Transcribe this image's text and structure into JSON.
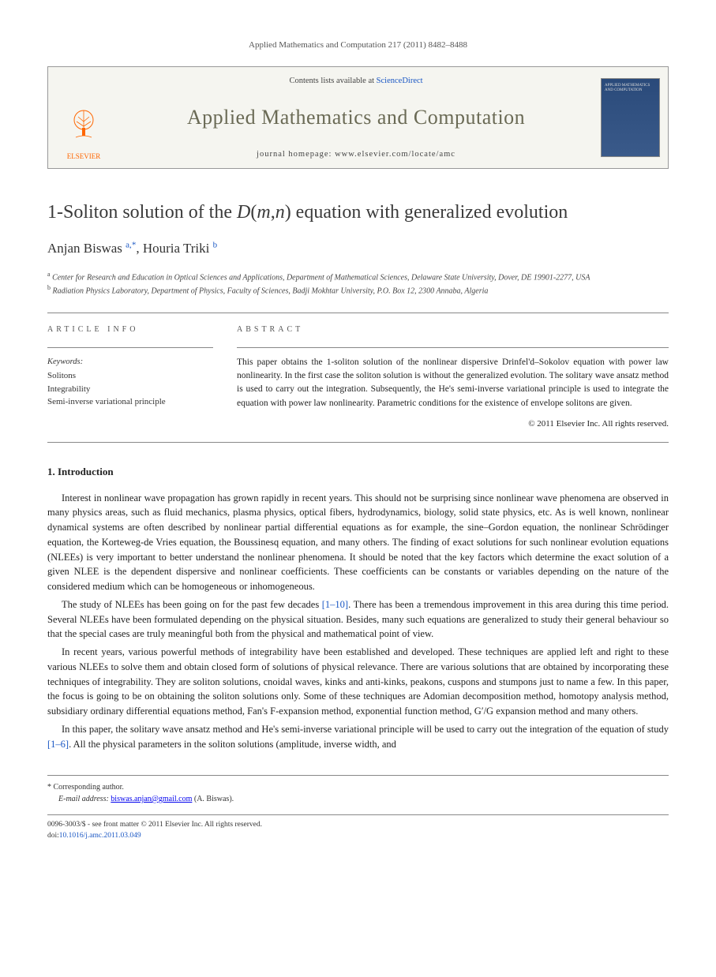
{
  "journal_ref": "Applied Mathematics and Computation 217 (2011) 8482–8488",
  "masthead": {
    "contents_prefix": "Contents lists available at ",
    "contents_link": "ScienceDirect",
    "journal_name": "Applied Mathematics and Computation",
    "homepage_label": "journal homepage: www.elsevier.com/locate/amc",
    "elsevier_label": "ELSEVIER",
    "cover_text": "APPLIED MATHEMATICS AND COMPUTATION"
  },
  "title_html": "1-Soliton solution of the <em>D</em>(<em>m</em>,<em>n</em>) equation with generalized evolution",
  "authors": {
    "author1": "Anjan Biswas",
    "author1_sup": "a,",
    "author1_star": "*",
    "author2": "Houria Triki",
    "author2_sup": "b"
  },
  "affiliations": {
    "a": "Center for Research and Education in Optical Sciences and Applications, Department of Mathematical Sciences, Delaware State University, Dover, DE 19901-2277, USA",
    "b": "Radiation Physics Laboratory, Department of Physics, Faculty of Sciences, Badji Mokhtar University, P.O. Box 12, 2300 Annaba, Algeria"
  },
  "info_label": "ARTICLE INFO",
  "abstract_label": "ABSTRACT",
  "keywords_label": "Keywords:",
  "keywords": [
    "Solitons",
    "Integrability",
    "Semi-inverse variational principle"
  ],
  "abstract_text": "This paper obtains the 1-soliton solution of the nonlinear dispersive Drinfel'd–Sokolov equation with power law nonlinearity. In the first case the soliton solution is without the generalized evolution. The solitary wave ansatz method is used to carry out the integration. Subsequently, the He's semi-inverse variational principle is used to integrate the equation with power law nonlinearity. Parametric conditions for the existence of envelope solitons are given.",
  "copyright": "© 2011 Elsevier Inc. All rights reserved.",
  "intro_heading": "1. Introduction",
  "paragraphs": {
    "p1": "Interest in nonlinear wave propagation has grown rapidly in recent years. This should not be surprising since nonlinear wave phenomena are observed in many physics areas, such as fluid mechanics, plasma physics, optical fibers, hydrodynamics, biology, solid state physics, etc. As is well known, nonlinear dynamical systems are often described by nonlinear partial differential equations as for example, the sine–Gordon equation, the nonlinear Schrödinger equation, the Korteweg-de Vries equation, the Boussinesq equation, and many others. The finding of exact solutions for such nonlinear evolution equations (NLEEs) is very important to better understand the nonlinear phenomena. It should be noted that the key factors which determine the exact solution of a given NLEE is the dependent dispersive and nonlinear coefficients. These coefficients can be constants or variables depending on the nature of the considered medium which can be homogeneous or inhomogeneous.",
    "p2_pre": "The study of NLEEs has been going on for the past few decades ",
    "p2_ref": "[1–10]",
    "p2_post": ". There has been a tremendous improvement in this area during this time period. Several NLEEs have been formulated depending on the physical situation. Besides, many such equations are generalized to study their general behaviour so that the special cases are truly meaningful both from the physical and mathematical point of view.",
    "p3": "In recent years, various powerful methods of integrability have been established and developed. These techniques are applied left and right to these various NLEEs to solve them and obtain closed form of solutions of physical relevance. There are various solutions that are obtained by incorporating these techniques of integrability. They are soliton solutions, cnoidal waves, kinks and anti-kinks, peakons, cuspons and stumpons just to name a few. In this paper, the focus is going to be on obtaining the soliton solutions only. Some of these techniques are Adomian decomposition method, homotopy analysis method, subsidiary ordinary differential equations method, Fan's F-expansion method, exponential function method, G′/G expansion method and many others.",
    "p4_pre": "In this paper, the solitary wave ansatz method and He's semi-inverse variational principle will be used to carry out the integration of the equation of study ",
    "p4_ref": "[1–6]",
    "p4_post": ". All the physical parameters in the soliton solutions (amplitude, inverse width, and"
  },
  "footnote": {
    "corresponding": "Corresponding author.",
    "email_label": "E-mail address:",
    "email": "biswas.anjan@gmail.com",
    "email_who": " (A. Biswas)."
  },
  "bottom": {
    "line1": "0096-3003/$ - see front matter © 2011 Elsevier Inc. All rights reserved.",
    "doi_label": "doi:",
    "doi": "10.1016/j.amc.2011.03.049"
  },
  "colors": {
    "link": "#1a57c4",
    "elsevier_orange": "#ff6600",
    "journal_olive": "#6a6a55",
    "cover_bg": "#2a4a7a"
  }
}
